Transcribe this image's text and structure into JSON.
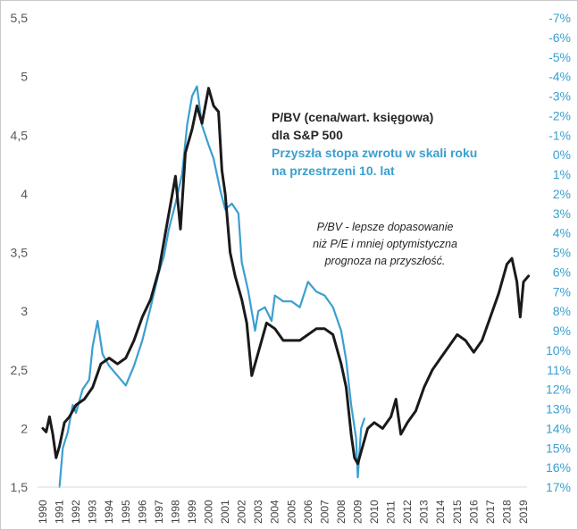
{
  "chart": {
    "title_lines": [
      "P/BV (cena/wart. księgowa)",
      "dla S&P 500"
    ],
    "subtitle_lines": [
      "Przyszła stopa zwrotu w skali roku",
      "na przestrzeni 10. lat"
    ],
    "note_lines": [
      "P/BV - lepsze dopasowanie",
      "niż P/E i mniej optymistyczna",
      "prognoza na przyszłość."
    ]
  },
  "chart_data": {
    "type": "line",
    "x_tick_labels": [
      "1990",
      "1991",
      "1992",
      "1993",
      "1994",
      "1995",
      "1996",
      "1997",
      "1998",
      "1999",
      "2000",
      "2001",
      "2002",
      "2003",
      "2004",
      "2005",
      "2006",
      "2007",
      "2008",
      "2009",
      "2010",
      "2011",
      "2012",
      "2013",
      "2014",
      "2015",
      "2016",
      "2017",
      "2018",
      "2019"
    ],
    "y_left": {
      "ticks": [
        1.5,
        2,
        2.5,
        3,
        3.5,
        4,
        4.5,
        5,
        5.5
      ],
      "tick_labels": [
        "1,5",
        "2",
        "2,5",
        "3",
        "3,5",
        "4",
        "4,5",
        "5",
        "5,5"
      ],
      "ylim": [
        1.5,
        5.5
      ]
    },
    "y_right": {
      "inverted": true,
      "ylim": [
        -7,
        17
      ],
      "tick_labels": [
        "-7%",
        "-6%",
        "-5%",
        "-4%",
        "-3%",
        "-2%",
        "-1%",
        "0%",
        "1%",
        "2%",
        "3%",
        "4%",
        "5%",
        "6%",
        "7%",
        "8%",
        "9%",
        "10%",
        "11%",
        "12%",
        "13%",
        "14%",
        "15%",
        "16%",
        "17%"
      ]
    },
    "grid": false,
    "series": [
      {
        "axis": "left",
        "color": "#1a1a1a",
        "points": [
          [
            1990.0,
            2.0
          ],
          [
            1990.2,
            1.97
          ],
          [
            1990.4,
            2.1
          ],
          [
            1990.6,
            1.95
          ],
          [
            1990.8,
            1.75
          ],
          [
            1991.0,
            1.85
          ],
          [
            1991.3,
            2.05
          ],
          [
            1991.6,
            2.1
          ],
          [
            1992.0,
            2.2
          ],
          [
            1992.5,
            2.25
          ],
          [
            1993.0,
            2.35
          ],
          [
            1993.5,
            2.55
          ],
          [
            1994.0,
            2.6
          ],
          [
            1994.5,
            2.55
          ],
          [
            1995.0,
            2.6
          ],
          [
            1995.5,
            2.75
          ],
          [
            1996.0,
            2.95
          ],
          [
            1996.5,
            3.1
          ],
          [
            1997.0,
            3.35
          ],
          [
            1997.5,
            3.75
          ],
          [
            1998.0,
            4.15
          ],
          [
            1998.3,
            3.7
          ],
          [
            1998.6,
            4.35
          ],
          [
            1999.0,
            4.55
          ],
          [
            1999.3,
            4.75
          ],
          [
            1999.6,
            4.6
          ],
          [
            2000.0,
            4.9
          ],
          [
            2000.3,
            4.75
          ],
          [
            2000.6,
            4.7
          ],
          [
            2000.8,
            4.2
          ],
          [
            2001.0,
            4.0
          ],
          [
            2001.3,
            3.5
          ],
          [
            2001.6,
            3.3
          ],
          [
            2002.0,
            3.1
          ],
          [
            2002.3,
            2.9
          ],
          [
            2002.6,
            2.45
          ],
          [
            2003.0,
            2.65
          ],
          [
            2003.5,
            2.9
          ],
          [
            2004.0,
            2.85
          ],
          [
            2004.5,
            2.75
          ],
          [
            2005.0,
            2.75
          ],
          [
            2005.5,
            2.75
          ],
          [
            2006.0,
            2.8
          ],
          [
            2006.5,
            2.85
          ],
          [
            2007.0,
            2.85
          ],
          [
            2007.5,
            2.8
          ],
          [
            2008.0,
            2.55
          ],
          [
            2008.3,
            2.35
          ],
          [
            2008.6,
            1.95
          ],
          [
            2008.8,
            1.75
          ],
          [
            2009.0,
            1.7
          ],
          [
            2009.3,
            1.85
          ],
          [
            2009.6,
            2.0
          ],
          [
            2010.0,
            2.05
          ],
          [
            2010.5,
            2.0
          ],
          [
            2011.0,
            2.1
          ],
          [
            2011.3,
            2.25
          ],
          [
            2011.6,
            1.95
          ],
          [
            2012.0,
            2.05
          ],
          [
            2012.5,
            2.15
          ],
          [
            2013.0,
            2.35
          ],
          [
            2013.5,
            2.5
          ],
          [
            2014.0,
            2.6
          ],
          [
            2014.5,
            2.7
          ],
          [
            2015.0,
            2.8
          ],
          [
            2015.5,
            2.75
          ],
          [
            2016.0,
            2.65
          ],
          [
            2016.5,
            2.75
          ],
          [
            2017.0,
            2.95
          ],
          [
            2017.5,
            3.15
          ],
          [
            2018.0,
            3.4
          ],
          [
            2018.3,
            3.45
          ],
          [
            2018.6,
            3.25
          ],
          [
            2018.8,
            2.95
          ],
          [
            2019.0,
            3.25
          ],
          [
            2019.3,
            3.3
          ]
        ]
      },
      {
        "axis": "right",
        "color": "#3a9fd0",
        "points": [
          [
            1991.0,
            17.0
          ],
          [
            1991.2,
            15.0
          ],
          [
            1991.5,
            14.2
          ],
          [
            1991.8,
            12.8
          ],
          [
            1992.0,
            13.2
          ],
          [
            1992.4,
            12.0
          ],
          [
            1992.8,
            11.5
          ],
          [
            1993.0,
            9.8
          ],
          [
            1993.3,
            8.5
          ],
          [
            1993.6,
            10.2
          ],
          [
            1994.0,
            10.8
          ],
          [
            1994.5,
            11.3
          ],
          [
            1995.0,
            11.8
          ],
          [
            1995.5,
            10.8
          ],
          [
            1996.0,
            9.5
          ],
          [
            1996.5,
            7.8
          ],
          [
            1997.0,
            6.0
          ],
          [
            1997.3,
            5.2
          ],
          [
            1997.6,
            3.8
          ],
          [
            1998.0,
            2.5
          ],
          [
            1998.4,
            1.0
          ],
          [
            1998.7,
            -1.5
          ],
          [
            1999.0,
            -3.0
          ],
          [
            1999.3,
            -3.5
          ],
          [
            1999.6,
            -1.5
          ],
          [
            2000.0,
            -0.5
          ],
          [
            2000.3,
            0.2
          ],
          [
            2000.7,
            1.8
          ],
          [
            2001.0,
            2.8
          ],
          [
            2001.4,
            2.5
          ],
          [
            2001.8,
            3.0
          ],
          [
            2002.0,
            5.5
          ],
          [
            2002.4,
            7.0
          ],
          [
            2002.8,
            9.0
          ],
          [
            2003.0,
            8.0
          ],
          [
            2003.4,
            7.8
          ],
          [
            2003.8,
            8.5
          ],
          [
            2004.0,
            7.2
          ],
          [
            2004.5,
            7.5
          ],
          [
            2005.0,
            7.5
          ],
          [
            2005.5,
            7.8
          ],
          [
            2006.0,
            6.5
          ],
          [
            2006.5,
            7.0
          ],
          [
            2007.0,
            7.2
          ],
          [
            2007.5,
            7.8
          ],
          [
            2008.0,
            9.0
          ],
          [
            2008.3,
            10.5
          ],
          [
            2008.6,
            12.8
          ],
          [
            2008.9,
            14.5
          ],
          [
            2009.0,
            16.5
          ],
          [
            2009.2,
            14.0
          ],
          [
            2009.4,
            13.5
          ]
        ]
      }
    ]
  },
  "colors": {
    "black_series": "#1a1a1a",
    "blue_series": "#3a9fd0",
    "left_ticks": "#595959",
    "right_ticks": "#3a9fd0",
    "frame": "#c9c9c9"
  }
}
